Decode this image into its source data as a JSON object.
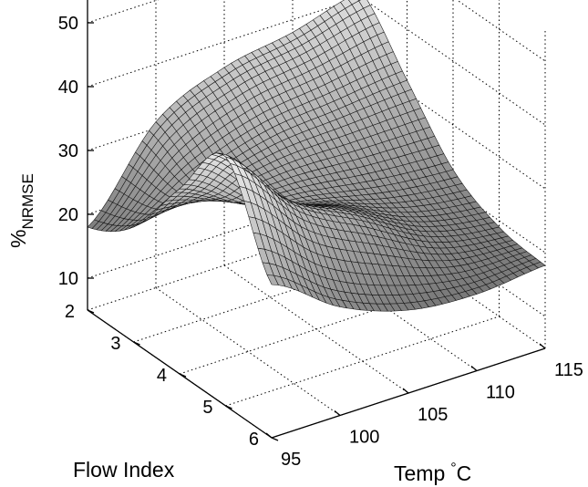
{
  "chart_data": {
    "type": "surface",
    "title": "",
    "xlabel": "Temp",
    "xlabel_unit": "°C",
    "ylabel": "Flow Index",
    "zlabel": "%",
    "zlabel_subscript": "NRMSE",
    "xlim": [
      95,
      115
    ],
    "ylim": [
      2,
      6
    ],
    "zlim": [
      5,
      55
    ],
    "xticks": [
      "95",
      "100",
      "105",
      "110",
      "115"
    ],
    "yticks": [
      "2",
      "3",
      "4",
      "5",
      "6"
    ],
    "zticks": [
      "10",
      "20",
      "30",
      "40",
      "50"
    ],
    "x_samples": [
      95,
      100,
      105,
      110,
      115
    ],
    "y_samples": [
      2,
      3,
      4,
      5,
      6
    ],
    "z_grid": [
      [
        18,
        31,
        36,
        38,
        41
      ],
      [
        23,
        27,
        30,
        31,
        32
      ],
      [
        34,
        28,
        26,
        24,
        23
      ],
      [
        44,
        33,
        27,
        21,
        19
      ],
      [
        29,
        22,
        18,
        17,
        18
      ]
    ],
    "colormap": [
      "#707070",
      "#f4f4f4"
    ],
    "grid": true
  }
}
